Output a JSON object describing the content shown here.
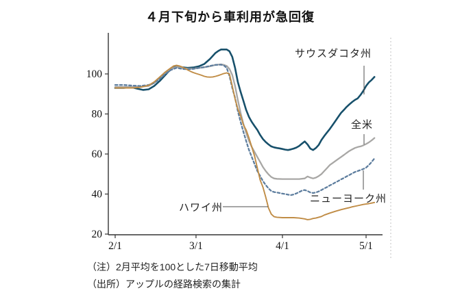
{
  "title": "４月下旬から車利用が急回復",
  "notes": {
    "line1": "（注）2月平均を100とした7日移動平均",
    "line2": "（出所）アップルの経路検索の集計"
  },
  "chart_data": {
    "type": "line",
    "title": "４月下旬から車利用が急回復",
    "x_unit": "date (2020), days since 2/1",
    "x_ticks": [
      {
        "day": 0,
        "label": "2/1"
      },
      {
        "day": 29,
        "label": "3/1"
      },
      {
        "day": 60,
        "label": "4/1"
      },
      {
        "day": 90,
        "label": "5/1"
      }
    ],
    "y_ticks": [
      20,
      40,
      60,
      80,
      100
    ],
    "ylim": [
      20,
      121
    ],
    "grid": false,
    "legend_position": "inline-callouts",
    "axis_color": "#333333",
    "series": [
      {
        "name": "サウスダコタ州",
        "color": "#17506b",
        "style": "solid",
        "width": 2.6,
        "points": [
          [
            0,
            93
          ],
          [
            3,
            93
          ],
          [
            6,
            93.3
          ],
          [
            8,
            92.6
          ],
          [
            10,
            92
          ],
          [
            12,
            92.3
          ],
          [
            14,
            94
          ],
          [
            16,
            96.5
          ],
          [
            18,
            99.5
          ],
          [
            20,
            102.5
          ],
          [
            22,
            103.7
          ],
          [
            24,
            103.3
          ],
          [
            26,
            103
          ],
          [
            28,
            103.2
          ],
          [
            30,
            103.8
          ],
          [
            32,
            105
          ],
          [
            34,
            107.5
          ],
          [
            36,
            110.5
          ],
          [
            37,
            111.5
          ],
          [
            38,
            112.2
          ],
          [
            40,
            112.2
          ],
          [
            41,
            111.3
          ],
          [
            42,
            108.5
          ],
          [
            43,
            103
          ],
          [
            44,
            96
          ],
          [
            45,
            91
          ],
          [
            46,
            86.5
          ],
          [
            47,
            82
          ],
          [
            48,
            78.5
          ],
          [
            49,
            76
          ],
          [
            50,
            74
          ],
          [
            51,
            72
          ],
          [
            52,
            69.5
          ],
          [
            53,
            67.5
          ],
          [
            54,
            66
          ],
          [
            55,
            64.8
          ],
          [
            56,
            63.8
          ],
          [
            57,
            63.3
          ],
          [
            58,
            63
          ],
          [
            59,
            62.8
          ],
          [
            60,
            62.5
          ],
          [
            61,
            62.2
          ],
          [
            62,
            62
          ],
          [
            63,
            62.3
          ],
          [
            64,
            62.7
          ],
          [
            65,
            63.2
          ],
          [
            66,
            64
          ],
          [
            67,
            65.2
          ],
          [
            68,
            66.3
          ],
          [
            69,
            64.8
          ],
          [
            70,
            62.7
          ],
          [
            71,
            62
          ],
          [
            72,
            63
          ],
          [
            73,
            64.5
          ],
          [
            74,
            67
          ],
          [
            75,
            69
          ],
          [
            76,
            70.8
          ],
          [
            77,
            72.5
          ],
          [
            78,
            74.5
          ],
          [
            79,
            76.5
          ],
          [
            80,
            78.5
          ],
          [
            81,
            80.5
          ],
          [
            82,
            82
          ],
          [
            83,
            83.5
          ],
          [
            84,
            84.8
          ],
          [
            85,
            86
          ],
          [
            86,
            87
          ],
          [
            87,
            87.8
          ],
          [
            88,
            89.5
          ],
          [
            89,
            91.5
          ],
          [
            90,
            94
          ],
          [
            91,
            95.8
          ],
          [
            92,
            97
          ],
          [
            93,
            98.5
          ]
        ]
      },
      {
        "name": "全米",
        "color": "#a8a7a5",
        "style": "solid",
        "width": 2.3,
        "points": [
          [
            0,
            93.5
          ],
          [
            3,
            93.5
          ],
          [
            6,
            93.5
          ],
          [
            9,
            93.6
          ],
          [
            12,
            94
          ],
          [
            14,
            95.5
          ],
          [
            16,
            98
          ],
          [
            18,
            100.5
          ],
          [
            20,
            102.5
          ],
          [
            22,
            103.5
          ],
          [
            24,
            103
          ],
          [
            26,
            102.6
          ],
          [
            28,
            102.6
          ],
          [
            30,
            103
          ],
          [
            32,
            103.3
          ],
          [
            34,
            103.8
          ],
          [
            36,
            104.5
          ],
          [
            38,
            104.8
          ],
          [
            39,
            104.5
          ],
          [
            40,
            104
          ],
          [
            41,
            102.5
          ],
          [
            42,
            99.5
          ],
          [
            43,
            94
          ],
          [
            44,
            87
          ],
          [
            45,
            80.5
          ],
          [
            46,
            75
          ],
          [
            47,
            70.5
          ],
          [
            48,
            66.5
          ],
          [
            49,
            63.5
          ],
          [
            50,
            61
          ],
          [
            51,
            58.5
          ],
          [
            52,
            56
          ],
          [
            53,
            53.5
          ],
          [
            54,
            51.5
          ],
          [
            55,
            49.8
          ],
          [
            56,
            48.5
          ],
          [
            57,
            47.8
          ],
          [
            58,
            47.6
          ],
          [
            60,
            47.5
          ],
          [
            62,
            47.5
          ],
          [
            64,
            47.5
          ],
          [
            66,
            47.5
          ],
          [
            68,
            47.8
          ],
          [
            69,
            48.8
          ],
          [
            70,
            48.2
          ],
          [
            71,
            47.8
          ],
          [
            72,
            48.2
          ],
          [
            73,
            49
          ],
          [
            74,
            50
          ],
          [
            75,
            51.5
          ],
          [
            76,
            53
          ],
          [
            77,
            54.5
          ],
          [
            78,
            55.5
          ],
          [
            79,
            56.5
          ],
          [
            80,
            57.5
          ],
          [
            81,
            58.5
          ],
          [
            82,
            59.5
          ],
          [
            83,
            60.5
          ],
          [
            84,
            61.5
          ],
          [
            85,
            62.3
          ],
          [
            86,
            63
          ],
          [
            87,
            63.5
          ],
          [
            88,
            63.8
          ],
          [
            89,
            64.3
          ],
          [
            90,
            65
          ],
          [
            91,
            65.8
          ],
          [
            92,
            66.8
          ],
          [
            93,
            68
          ]
        ]
      },
      {
        "name": "ニューヨーク州",
        "color": "#5d7d9e",
        "style": "dashed",
        "width": 2.3,
        "points": [
          [
            0,
            94.5
          ],
          [
            3,
            94.5
          ],
          [
            6,
            94.2
          ],
          [
            9,
            94
          ],
          [
            12,
            94.5
          ],
          [
            14,
            95.5
          ],
          [
            16,
            97.5
          ],
          [
            18,
            100
          ],
          [
            20,
            102
          ],
          [
            22,
            103
          ],
          [
            24,
            102.5
          ],
          [
            26,
            102.3
          ],
          [
            28,
            102.5
          ],
          [
            30,
            103
          ],
          [
            32,
            103.4
          ],
          [
            34,
            104
          ],
          [
            36,
            104.5
          ],
          [
            38,
            104.6
          ],
          [
            39,
            104.2
          ],
          [
            40,
            103
          ],
          [
            41,
            99
          ],
          [
            42,
            93
          ],
          [
            43,
            88
          ],
          [
            44,
            81.5
          ],
          [
            45,
            76
          ],
          [
            46,
            71
          ],
          [
            47,
            66.5
          ],
          [
            48,
            62
          ],
          [
            49,
            58.5
          ],
          [
            50,
            55
          ],
          [
            51,
            51.5
          ],
          [
            52,
            49
          ],
          [
            53,
            46.5
          ],
          [
            54,
            44.5
          ],
          [
            55,
            42.8
          ],
          [
            56,
            41.5
          ],
          [
            57,
            41
          ],
          [
            58,
            40.8
          ],
          [
            59,
            40.5
          ],
          [
            60,
            40.2
          ],
          [
            61,
            40
          ],
          [
            62,
            39.7
          ],
          [
            63,
            39.5
          ],
          [
            64,
            39.8
          ],
          [
            65,
            40.3
          ],
          [
            66,
            41
          ],
          [
            67,
            41.7
          ],
          [
            68,
            42
          ],
          [
            69,
            41.5
          ],
          [
            70,
            40.8
          ],
          [
            71,
            40.5
          ],
          [
            72,
            40.8
          ],
          [
            73,
            41.3
          ],
          [
            74,
            42
          ],
          [
            75,
            42.8
          ],
          [
            76,
            43.5
          ],
          [
            77,
            44.3
          ],
          [
            78,
            45
          ],
          [
            79,
            45.8
          ],
          [
            80,
            46.5
          ],
          [
            81,
            47.3
          ],
          [
            82,
            48
          ],
          [
            83,
            48.8
          ],
          [
            84,
            49.5
          ],
          [
            85,
            50.3
          ],
          [
            86,
            51
          ],
          [
            87,
            51.5
          ],
          [
            88,
            52
          ],
          [
            89,
            52.5
          ],
          [
            90,
            53.2
          ],
          [
            91,
            54.5
          ],
          [
            92,
            56
          ],
          [
            93,
            57.8
          ]
        ]
      },
      {
        "name": "ハワイ州",
        "color": "#c08c45",
        "style": "solid",
        "width": 1.9,
        "points": [
          [
            0,
            93
          ],
          [
            3,
            93
          ],
          [
            6,
            93
          ],
          [
            9,
            93.3
          ],
          [
            12,
            94.3
          ],
          [
            14,
            96
          ],
          [
            16,
            98.5
          ],
          [
            18,
            101
          ],
          [
            20,
            103
          ],
          [
            21,
            104
          ],
          [
            22,
            104.3
          ],
          [
            23,
            104
          ],
          [
            24,
            103.5
          ],
          [
            25,
            102.8
          ],
          [
            26,
            102
          ],
          [
            27,
            101.3
          ],
          [
            28,
            100.7
          ],
          [
            29,
            100.2
          ],
          [
            30,
            99.8
          ],
          [
            31,
            99.3
          ],
          [
            32,
            98.8
          ],
          [
            33,
            98.5
          ],
          [
            34,
            98.4
          ],
          [
            35,
            98.5
          ],
          [
            36,
            98.8
          ],
          [
            37,
            99.2
          ],
          [
            38,
            99.7
          ],
          [
            39,
            100.2
          ],
          [
            40,
            100.5
          ],
          [
            41,
            100
          ],
          [
            42,
            94
          ],
          [
            43,
            87.5
          ],
          [
            44,
            82.5
          ],
          [
            45,
            79
          ],
          [
            46,
            74.5
          ],
          [
            47,
            72
          ],
          [
            48,
            68
          ],
          [
            49,
            63.5
          ],
          [
            50,
            59
          ],
          [
            51,
            53
          ],
          [
            52,
            47
          ],
          [
            53,
            43.5
          ],
          [
            54,
            38.5
          ],
          [
            55,
            33
          ],
          [
            56,
            30
          ],
          [
            57,
            28.7
          ],
          [
            58,
            28.4
          ],
          [
            60,
            28.2
          ],
          [
            62,
            28.2
          ],
          [
            64,
            28.2
          ],
          [
            66,
            28
          ],
          [
            68,
            27.6
          ],
          [
            69,
            27.2
          ],
          [
            70,
            27.4
          ],
          [
            71,
            27.8
          ],
          [
            72,
            28
          ],
          [
            74,
            28.8
          ],
          [
            75,
            29.5
          ],
          [
            77,
            30.5
          ],
          [
            79,
            31.4
          ],
          [
            81,
            32.2
          ],
          [
            83,
            32.9
          ],
          [
            84,
            33.2
          ],
          [
            85,
            33.6
          ],
          [
            87,
            34.2
          ],
          [
            89,
            34.8
          ],
          [
            90,
            35
          ],
          [
            91,
            35.2
          ],
          [
            92,
            35.5
          ],
          [
            93,
            35.8
          ]
        ]
      }
    ],
    "annotations": [
      {
        "text": "サウスダコタ州",
        "points_to": "サウスダコタ州"
      },
      {
        "text": "全米",
        "points_to": "全米"
      },
      {
        "text": "ニューヨーク州",
        "points_to": "ニューヨーク州"
      },
      {
        "text": "ハワイ州",
        "points_to": "ハワイ州"
      }
    ]
  }
}
